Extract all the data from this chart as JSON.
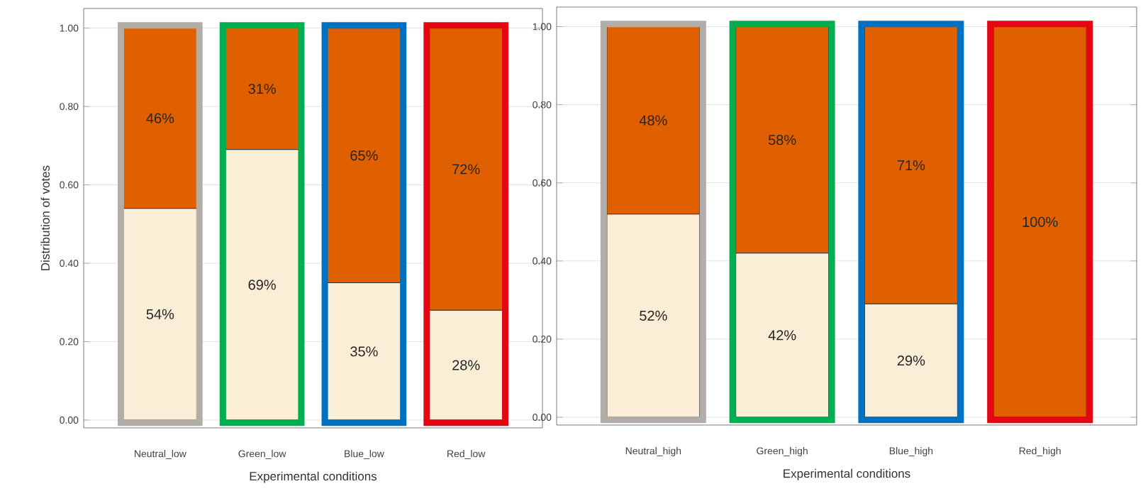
{
  "chart_data": [
    {
      "type": "bar",
      "stacked": true,
      "categories": [
        "Neutral_low",
        "Green_low",
        "Blue_low",
        "Red_low"
      ],
      "xlabel": "Experimental conditions",
      "ylabel": "Distribution of votes",
      "ylim": [
        -0.02,
        1.05
      ],
      "yticks": [
        {
          "value": 0,
          "label": "0.00"
        },
        {
          "value": 0.2,
          "label": "0.20"
        },
        {
          "value": 0.4,
          "label": "0.40"
        },
        {
          "value": 0.6,
          "label": "0.60"
        },
        {
          "value": 0.8,
          "label": "0.80"
        },
        {
          "value": 1,
          "label": "1.00"
        }
      ],
      "grid": "y",
      "series": [
        {
          "color": "#faefd6",
          "values": [
            0.54,
            0.69,
            0.35,
            0.28
          ],
          "value_labels": [
            "54%",
            "69%",
            "35%",
            "28%"
          ]
        },
        {
          "color": "#e06000",
          "values": [
            0.46,
            0.31,
            0.65,
            0.72
          ],
          "value_labels": [
            "46%",
            "31%",
            "65%",
            "72%"
          ]
        }
      ]
    },
    {
      "type": "bar",
      "stacked": true,
      "categories": [
        "Neutral_high",
        "Green_high",
        "Blue_high",
        "Red_high"
      ],
      "xlabel": "Experimental conditions",
      "ylim": [
        -0.02,
        1.05
      ],
      "yticks": [
        {
          "value": 0,
          "label": "0.00"
        },
        {
          "value": 0.2,
          "label": "0.20"
        },
        {
          "value": 0.4,
          "label": "0.40"
        },
        {
          "value": 0.6,
          "label": "0.60"
        },
        {
          "value": 0.8,
          "label": "0.80"
        },
        {
          "value": 1,
          "label": "1.00"
        }
      ],
      "grid": "y",
      "series": [
        {
          "color": "#faefd6",
          "values": [
            0.52,
            0.42,
            0.29,
            0
          ],
          "value_labels": [
            "52%",
            "42%",
            "29%",
            null
          ]
        },
        {
          "color": "#e06000",
          "values": [
            0.48,
            0.58,
            0.71,
            1.0
          ],
          "value_labels": [
            "48%",
            "58%",
            "71%",
            "100%"
          ]
        }
      ]
    }
  ]
}
